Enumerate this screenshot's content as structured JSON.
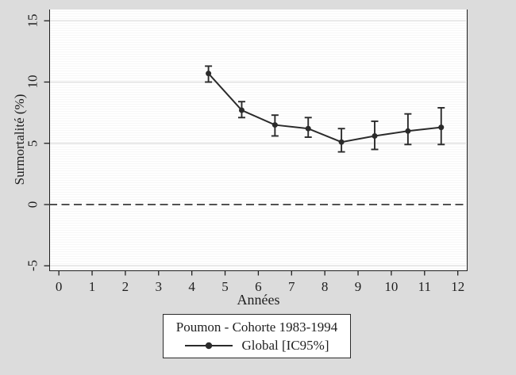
{
  "figure": {
    "background": "#dcdcdc",
    "plot_background": "#ffffff"
  },
  "chart_data": {
    "type": "line",
    "title": "",
    "xlabel": "Années",
    "ylabel": "Surmortalité (%)",
    "xticks": [
      0,
      1,
      2,
      3,
      4,
      5,
      6,
      7,
      8,
      9,
      10,
      11,
      12
    ],
    "yticks": [
      -5,
      0,
      5,
      10,
      15
    ],
    "xlim": [
      -0.29,
      12.27
    ],
    "ylim": [
      -5.37,
      15.92
    ],
    "grid": "horizontal-major",
    "zero_line_y": 0,
    "series": [
      {
        "name": "Global [IC95%]",
        "x": [
          4.5,
          5.5,
          6.5,
          7.5,
          8.5,
          9.5,
          10.5,
          11.5
        ],
        "y": [
          10.7,
          7.7,
          6.5,
          6.2,
          5.1,
          5.6,
          6.0,
          6.3
        ],
        "ci_low": [
          10.0,
          7.1,
          5.6,
          5.5,
          4.3,
          4.5,
          4.9,
          4.9
        ],
        "ci_high": [
          11.3,
          8.4,
          7.3,
          7.1,
          6.2,
          6.8,
          7.4,
          7.9
        ]
      }
    ],
    "legend": {
      "position": "bottom-center",
      "title": "Poumon - Cohorte 1983-1994",
      "entries": [
        {
          "label": "Global [IC95%]",
          "marker": "line-circle"
        }
      ]
    },
    "colors": {
      "series": "#2b2b2b",
      "grid": "#e2e2e2",
      "axis": "#1f1f1f",
      "zero_line": "#3a3a3a"
    }
  }
}
